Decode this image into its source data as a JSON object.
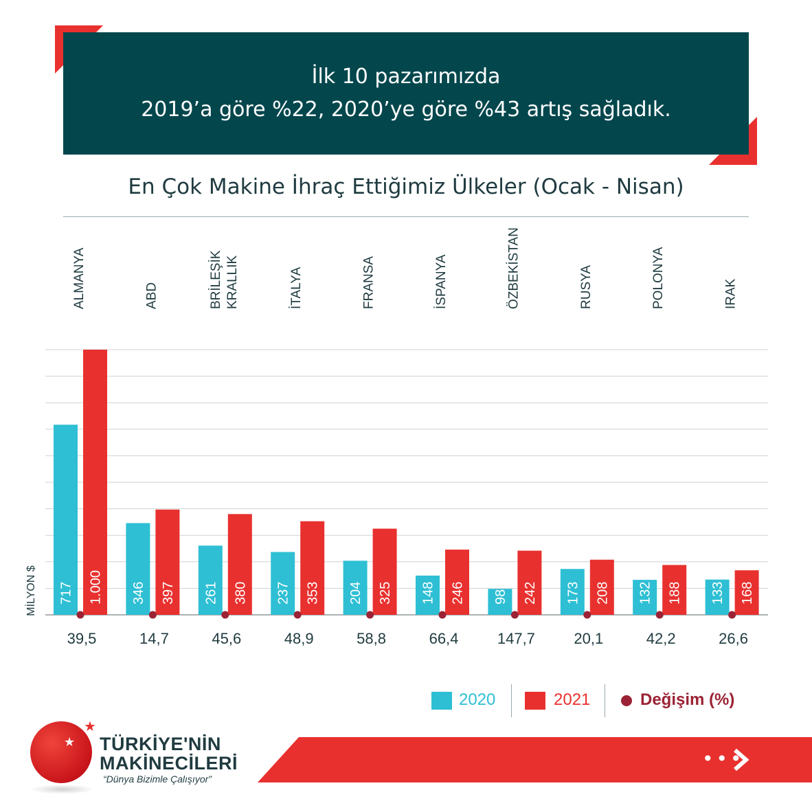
{
  "header": {
    "title_line1": "İlk 10 pazarımızda",
    "title_line2": "2019’a göre %22, 2020’ye göre %43 artış sağladık."
  },
  "subtitle": "En Çok Makine İhraç Ettiğimiz Ülkeler (Ocak - Nisan)",
  "colors": {
    "series_2020": "#2ebfd4",
    "series_2021": "#e8312f",
    "change_dot": "#9b2335",
    "dark_teal": "#03474d"
  },
  "chart_data": {
    "type": "bar",
    "title": "En Çok Makine İhraç Ettiğimiz Ülkeler (Ocak - Nisan)",
    "ylabel": "MİLYON $",
    "xlabel": "",
    "ylim": [
      0,
      1000
    ],
    "grid": true,
    "legend_position": "bottom-right",
    "categories": [
      [
        "ALMANYA"
      ],
      [
        "ABD"
      ],
      [
        "BRİLEŞİK",
        "KRALLIK"
      ],
      [
        "İTALYA"
      ],
      [
        "FRANSA"
      ],
      [
        "İSPANYA"
      ],
      [
        "ÖZBEKİSTAN"
      ],
      [
        "RUSYA"
      ],
      [
        "POLONYA"
      ],
      [
        "IRAK"
      ]
    ],
    "series": [
      {
        "name": "2020",
        "values": [
          717,
          346,
          261,
          237,
          204,
          148,
          98,
          173,
          132,
          133
        ],
        "labels": [
          "717",
          "346",
          "261",
          "237",
          "204",
          "148",
          "98",
          "173",
          "132",
          "133"
        ]
      },
      {
        "name": "2021",
        "values": [
          1000,
          397,
          380,
          353,
          325,
          246,
          242,
          208,
          188,
          168
        ],
        "labels": [
          "1.000",
          "397",
          "380",
          "353",
          "325",
          "246",
          "242",
          "208",
          "188",
          "168"
        ]
      }
    ],
    "change": {
      "name": "Değişim (%)",
      "values": [
        39.5,
        14.7,
        45.6,
        48.9,
        58.8,
        66.4,
        147.7,
        20.1,
        42.2,
        26.6
      ],
      "labels": [
        "39,5",
        "14,7",
        "45,6",
        "48,9",
        "58,8",
        "66,4",
        "147,7",
        "20,1",
        "42,2",
        "26,6"
      ]
    }
  },
  "legend": {
    "item_2020": "2020",
    "item_2021": "2021",
    "item_change": "Değişim (%)"
  },
  "footer": {
    "brand_line1": "TÜRKİYE'NİN",
    "brand_line2": "MAKİNECİLERİ",
    "tagline": "“Dünya Bizimle Çalışıyor”",
    "next_dots": "•••",
    "next_icon": "chevron-right-icon"
  }
}
